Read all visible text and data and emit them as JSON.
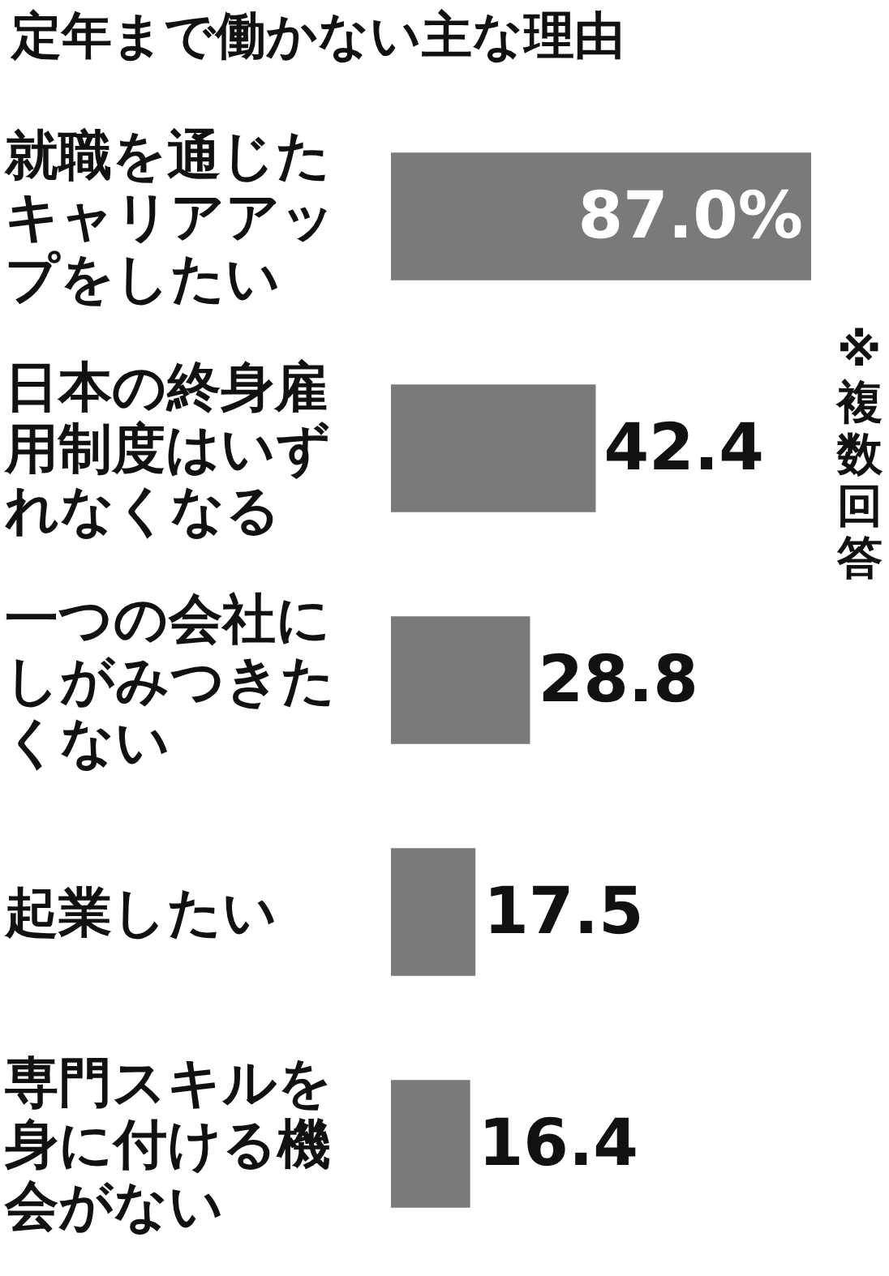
{
  "chart_data": {
    "type": "bar",
    "orientation": "horizontal",
    "title": "定年まで働かない主な理由",
    "categories": [
      "就職を通じたキャリアアップをしたい",
      "日本の終身雇用制度はいずれなくなる",
      "一つの会社にしがみつきたくない",
      "起業したい",
      "専門スキルを身に付ける機会がない"
    ],
    "values": [
      87.0,
      42.4,
      28.8,
      17.5,
      16.4
    ],
    "value_labels": [
      "87.0%",
      "42.4",
      "28.8",
      "17.5",
      "16.4"
    ],
    "color": "#7a7a7a",
    "annotations": [
      "※複数回答"
    ]
  }
}
